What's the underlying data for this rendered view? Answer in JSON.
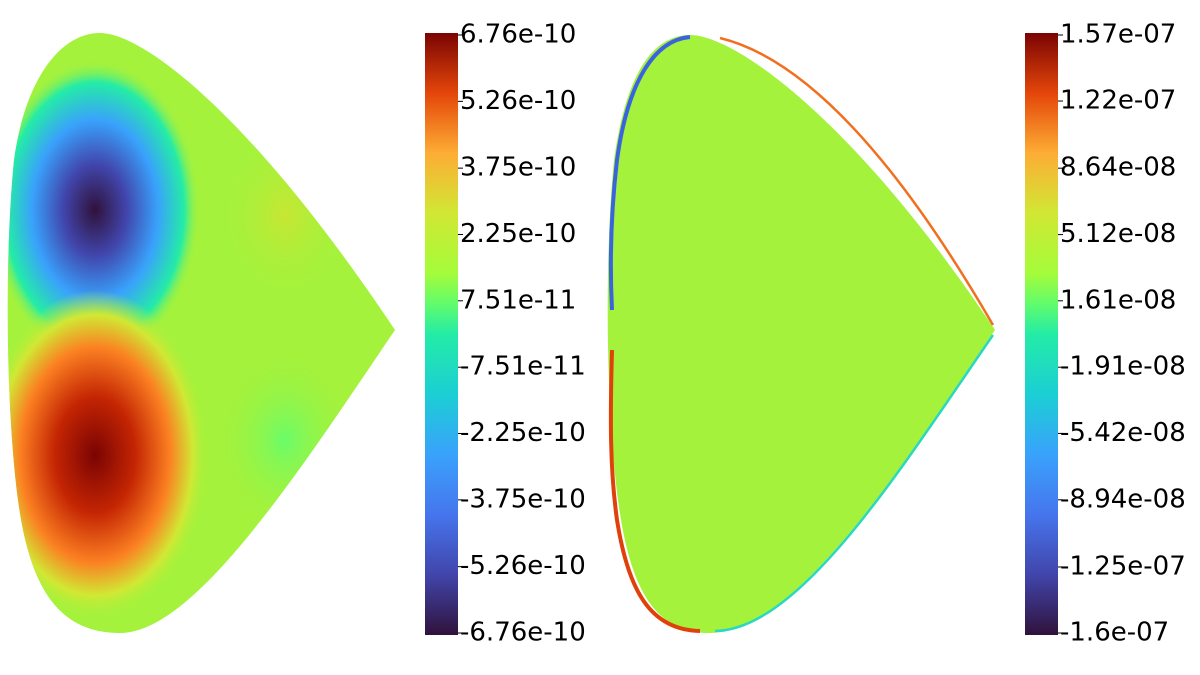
{
  "chart_data": [
    {
      "type": "heatmap",
      "ylim": [
        -6.76e-10,
        6.76e-10
      ],
      "yticks": [
        -6.76e-10,
        -5.26e-10,
        -3.75e-10,
        -2.25e-10,
        -7.51e-11,
        7.51e-11,
        2.25e-10,
        3.75e-10,
        5.26e-10,
        6.76e-10
      ]
    },
    {
      "type": "heatmap",
      "ylim": [
        -1.6e-07,
        1.57e-07
      ],
      "yticks": [
        {
          "value": -1.6e-07,
          "label": "-1.6e-07"
        },
        {
          "value": -1.25e-07,
          "label": "-1.25e-07"
        },
        {
          "value": -8.94e-08,
          "label": "-8.94e-08"
        },
        {
          "value": -5.42e-08,
          "label": "-5.42e-08"
        },
        {
          "value": -1.91e-08,
          "label": "-1.91e-08"
        },
        {
          "value": 1.61e-08,
          "label": "1.61e-08"
        },
        {
          "value": 5.12e-08,
          "label": "5.12e-08"
        },
        {
          "value": 8.64e-08,
          "label": "8.64e-08"
        },
        {
          "value": 1.22e-07,
          "label": "1.22e-07"
        },
        {
          "value": 1.57e-07,
          "label": "1.57e-07"
        }
      ]
    }
  ]
}
